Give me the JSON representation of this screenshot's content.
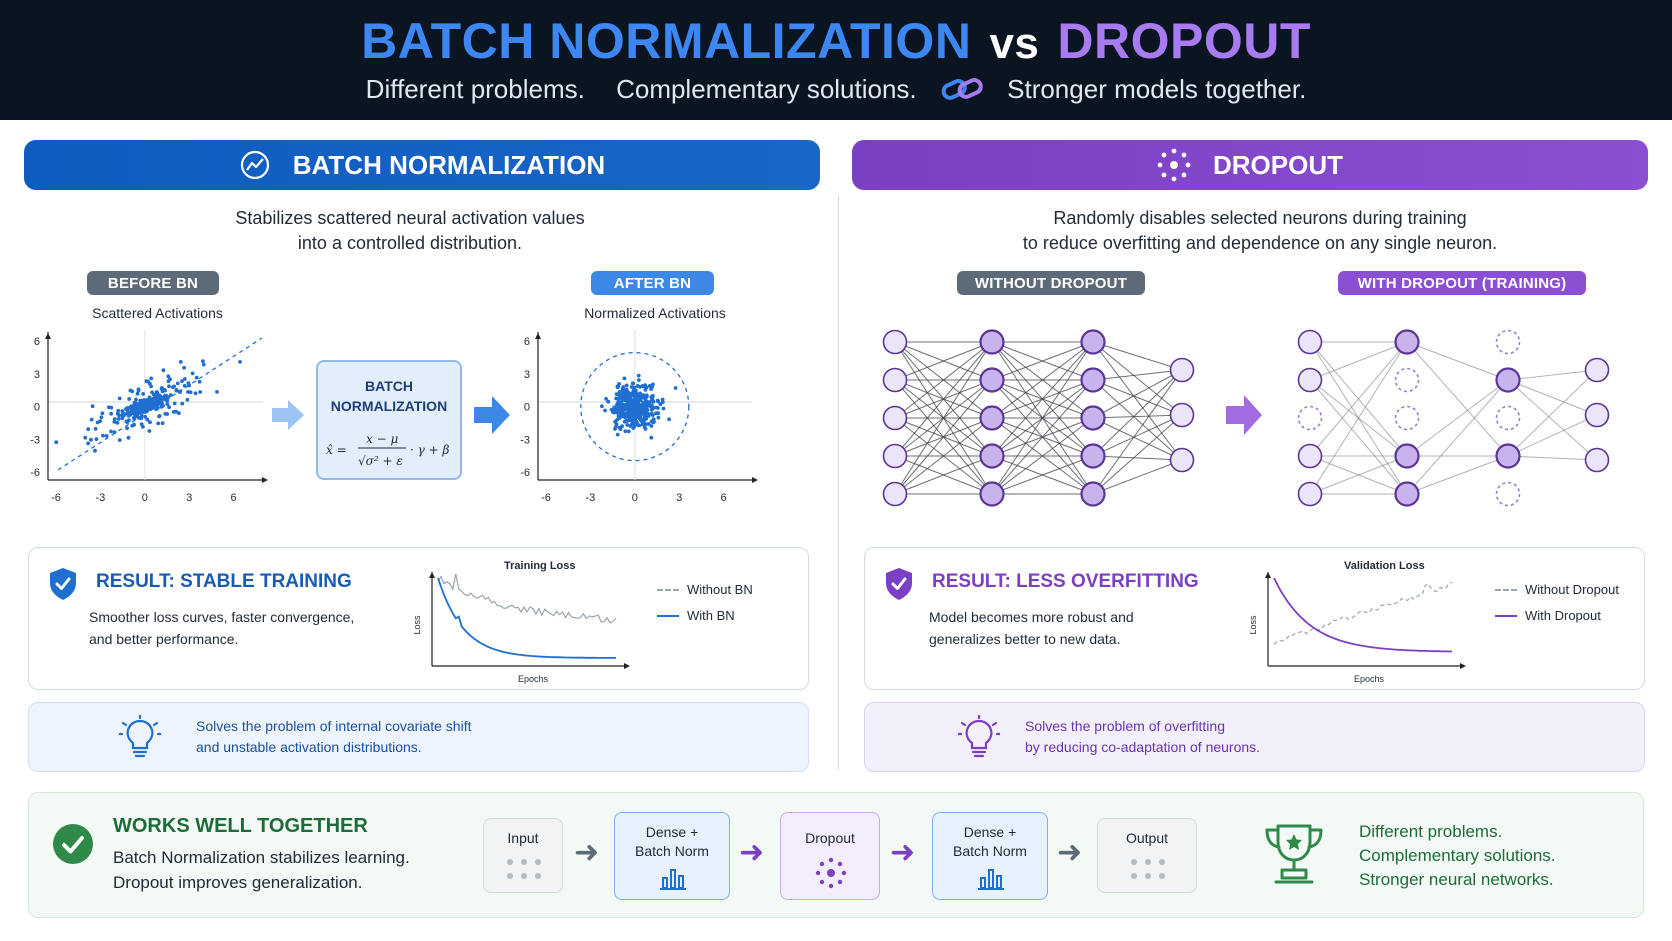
{
  "header": {
    "title_bn": "BATCH NORMALIZATION",
    "title_vs": "vs",
    "title_do": "DROPOUT",
    "subtitle_1": "Different problems.",
    "subtitle_2": "Complementary solutions.",
    "subtitle_3": "Stronger models together."
  },
  "bn": {
    "heading": "BATCH NORMALIZATION",
    "desc_1": "Stabilizes scattered neural activation values",
    "desc_2": "into a controlled distribution.",
    "before_pill": "BEFORE BN",
    "after_pill": "AFTER BN",
    "before_title": "Scattered Activations",
    "after_title": "Normalized Activations",
    "box_line1": "BATCH",
    "box_line2": "NORMALIZATION",
    "axis_ticks": [
      "-6",
      "-3",
      "0",
      "3",
      "6"
    ],
    "result_title": "RESULT: STABLE TRAINING",
    "result_text_1": "Smoother loss curves, faster convergence,",
    "result_text_2": "and better performance.",
    "loss_title": "Training Loss",
    "loss_ylabel": "Loss",
    "loss_xlabel": "Epochs",
    "legend_without": "Without BN",
    "legend_with": "With BN",
    "tip_1": "Solves the problem of internal covariate shift",
    "tip_2": "and unstable activation distributions."
  },
  "dropout": {
    "heading": "DROPOUT",
    "desc_1": "Randomly disables selected neurons during training",
    "desc_2": "to reduce overfitting and dependence on any single neuron.",
    "without_pill": "WITHOUT DROPOUT",
    "with_pill": "WITH DROPOUT (TRAINING)",
    "result_title": "RESULT: LESS OVERFITTING",
    "result_text_1": "Model becomes more robust and",
    "result_text_2": "generalizes better to new data.",
    "loss_title": "Validation Loss",
    "loss_ylabel": "Loss",
    "loss_xlabel": "Epochs",
    "legend_without": "Without Dropout",
    "legend_with": "With Dropout",
    "tip_1": "Solves the problem of overfitting",
    "tip_2": "by reducing co-adaptation of neurons."
  },
  "together": {
    "title": "WORKS WELL TOGETHER",
    "text_1": "Batch Normalization stabilizes learning.",
    "text_2": "Dropout improves generalization.",
    "flow": {
      "input": "Input",
      "dense1_a": "Dense +",
      "dense1_b": "Batch Norm",
      "dropout": "Dropout",
      "dense2_a": "Dense +",
      "dense2_b": "Batch Norm",
      "output": "Output"
    },
    "closing_1": "Different problems.",
    "closing_2": "Complementary solutions.",
    "closing_3": "Stronger neural networks."
  },
  "colors": {
    "header_bg": "#0b1522",
    "bn_blue": "#1a66c6",
    "dropout_purple": "#8a4fd2",
    "green": "#1e6b3a",
    "scatter_blue": "#1f6fd1"
  },
  "icons": [
    "trend-chart-icon",
    "dropout-dots-icon",
    "link-icon",
    "shield-check-icon",
    "lightbulb-icon",
    "check-circle-icon",
    "trophy-icon",
    "arrow-right-icon"
  ]
}
